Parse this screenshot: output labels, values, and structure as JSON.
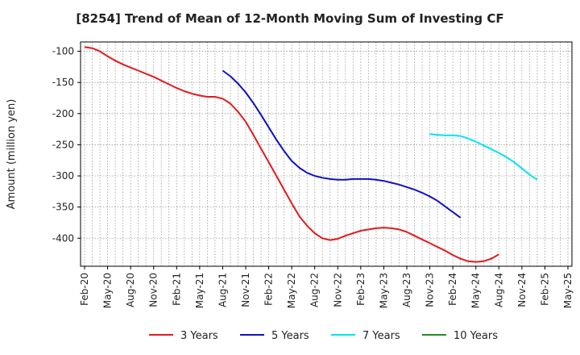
{
  "chart_data": {
    "type": "line",
    "title": "[8254]  Trend of Mean of 12-Month Moving Sum of Investing CF",
    "xlabel": "",
    "ylabel": "Amount (million yen)",
    "ylim": [
      -445,
      -85
    ],
    "yticks": [
      -100,
      -150,
      -200,
      -250,
      -300,
      -350,
      -400
    ],
    "x_tick_labels": [
      "Feb-20",
      "May-20",
      "Aug-20",
      "Nov-20",
      "Feb-21",
      "May-21",
      "Aug-21",
      "Nov-21",
      "Feb-22",
      "May-22",
      "Aug-22",
      "Nov-22",
      "Feb-23",
      "May-23",
      "Aug-23",
      "Nov-23",
      "Feb-24",
      "May-24",
      "Aug-24",
      "Nov-24",
      "Feb-25",
      "May-25"
    ],
    "grid": true,
    "legend_position": "bottom",
    "series": [
      {
        "name": "3 Years",
        "color": "#e31a1c",
        "start": "Feb-20",
        "values": [
          -93,
          -95,
          -100,
          -108,
          -115,
          -121,
          -126,
          -131,
          -136,
          -141,
          -147,
          -153,
          -159,
          -164,
          -168,
          -171,
          -173,
          -173,
          -176,
          -184,
          -197,
          -213,
          -234,
          -256,
          -278,
          -300,
          -322,
          -344,
          -365,
          -380,
          -392,
          -400,
          -403,
          -401,
          -396,
          -392,
          -388,
          -386,
          -384,
          -383,
          -384,
          -386,
          -390,
          -396,
          -402,
          -408,
          -414,
          -420,
          -427,
          -433,
          -437,
          -438,
          -437,
          -433,
          -426
        ]
      },
      {
        "name": "5 Years",
        "color": "#1010c8",
        "start": "Aug-21",
        "values": [
          -131,
          -140,
          -152,
          -166,
          -183,
          -202,
          -222,
          -242,
          -260,
          -276,
          -287,
          -295,
          -300,
          -303,
          -305,
          -306,
          -306,
          -305,
          -305,
          -305,
          -306,
          -308,
          -311,
          -314,
          -318,
          -322,
          -327,
          -333,
          -340,
          -349,
          -358,
          -367
        ]
      },
      {
        "name": "7 Years",
        "color": "#00e5ee",
        "start": "Nov-23",
        "values": [
          -233,
          -234,
          -235,
          -235,
          -236,
          -240,
          -245,
          -251,
          -257,
          -263,
          -270,
          -278,
          -288,
          -298,
          -306
        ]
      },
      {
        "name": "10 Years",
        "color": "#228b22",
        "start": "",
        "values": []
      }
    ]
  }
}
